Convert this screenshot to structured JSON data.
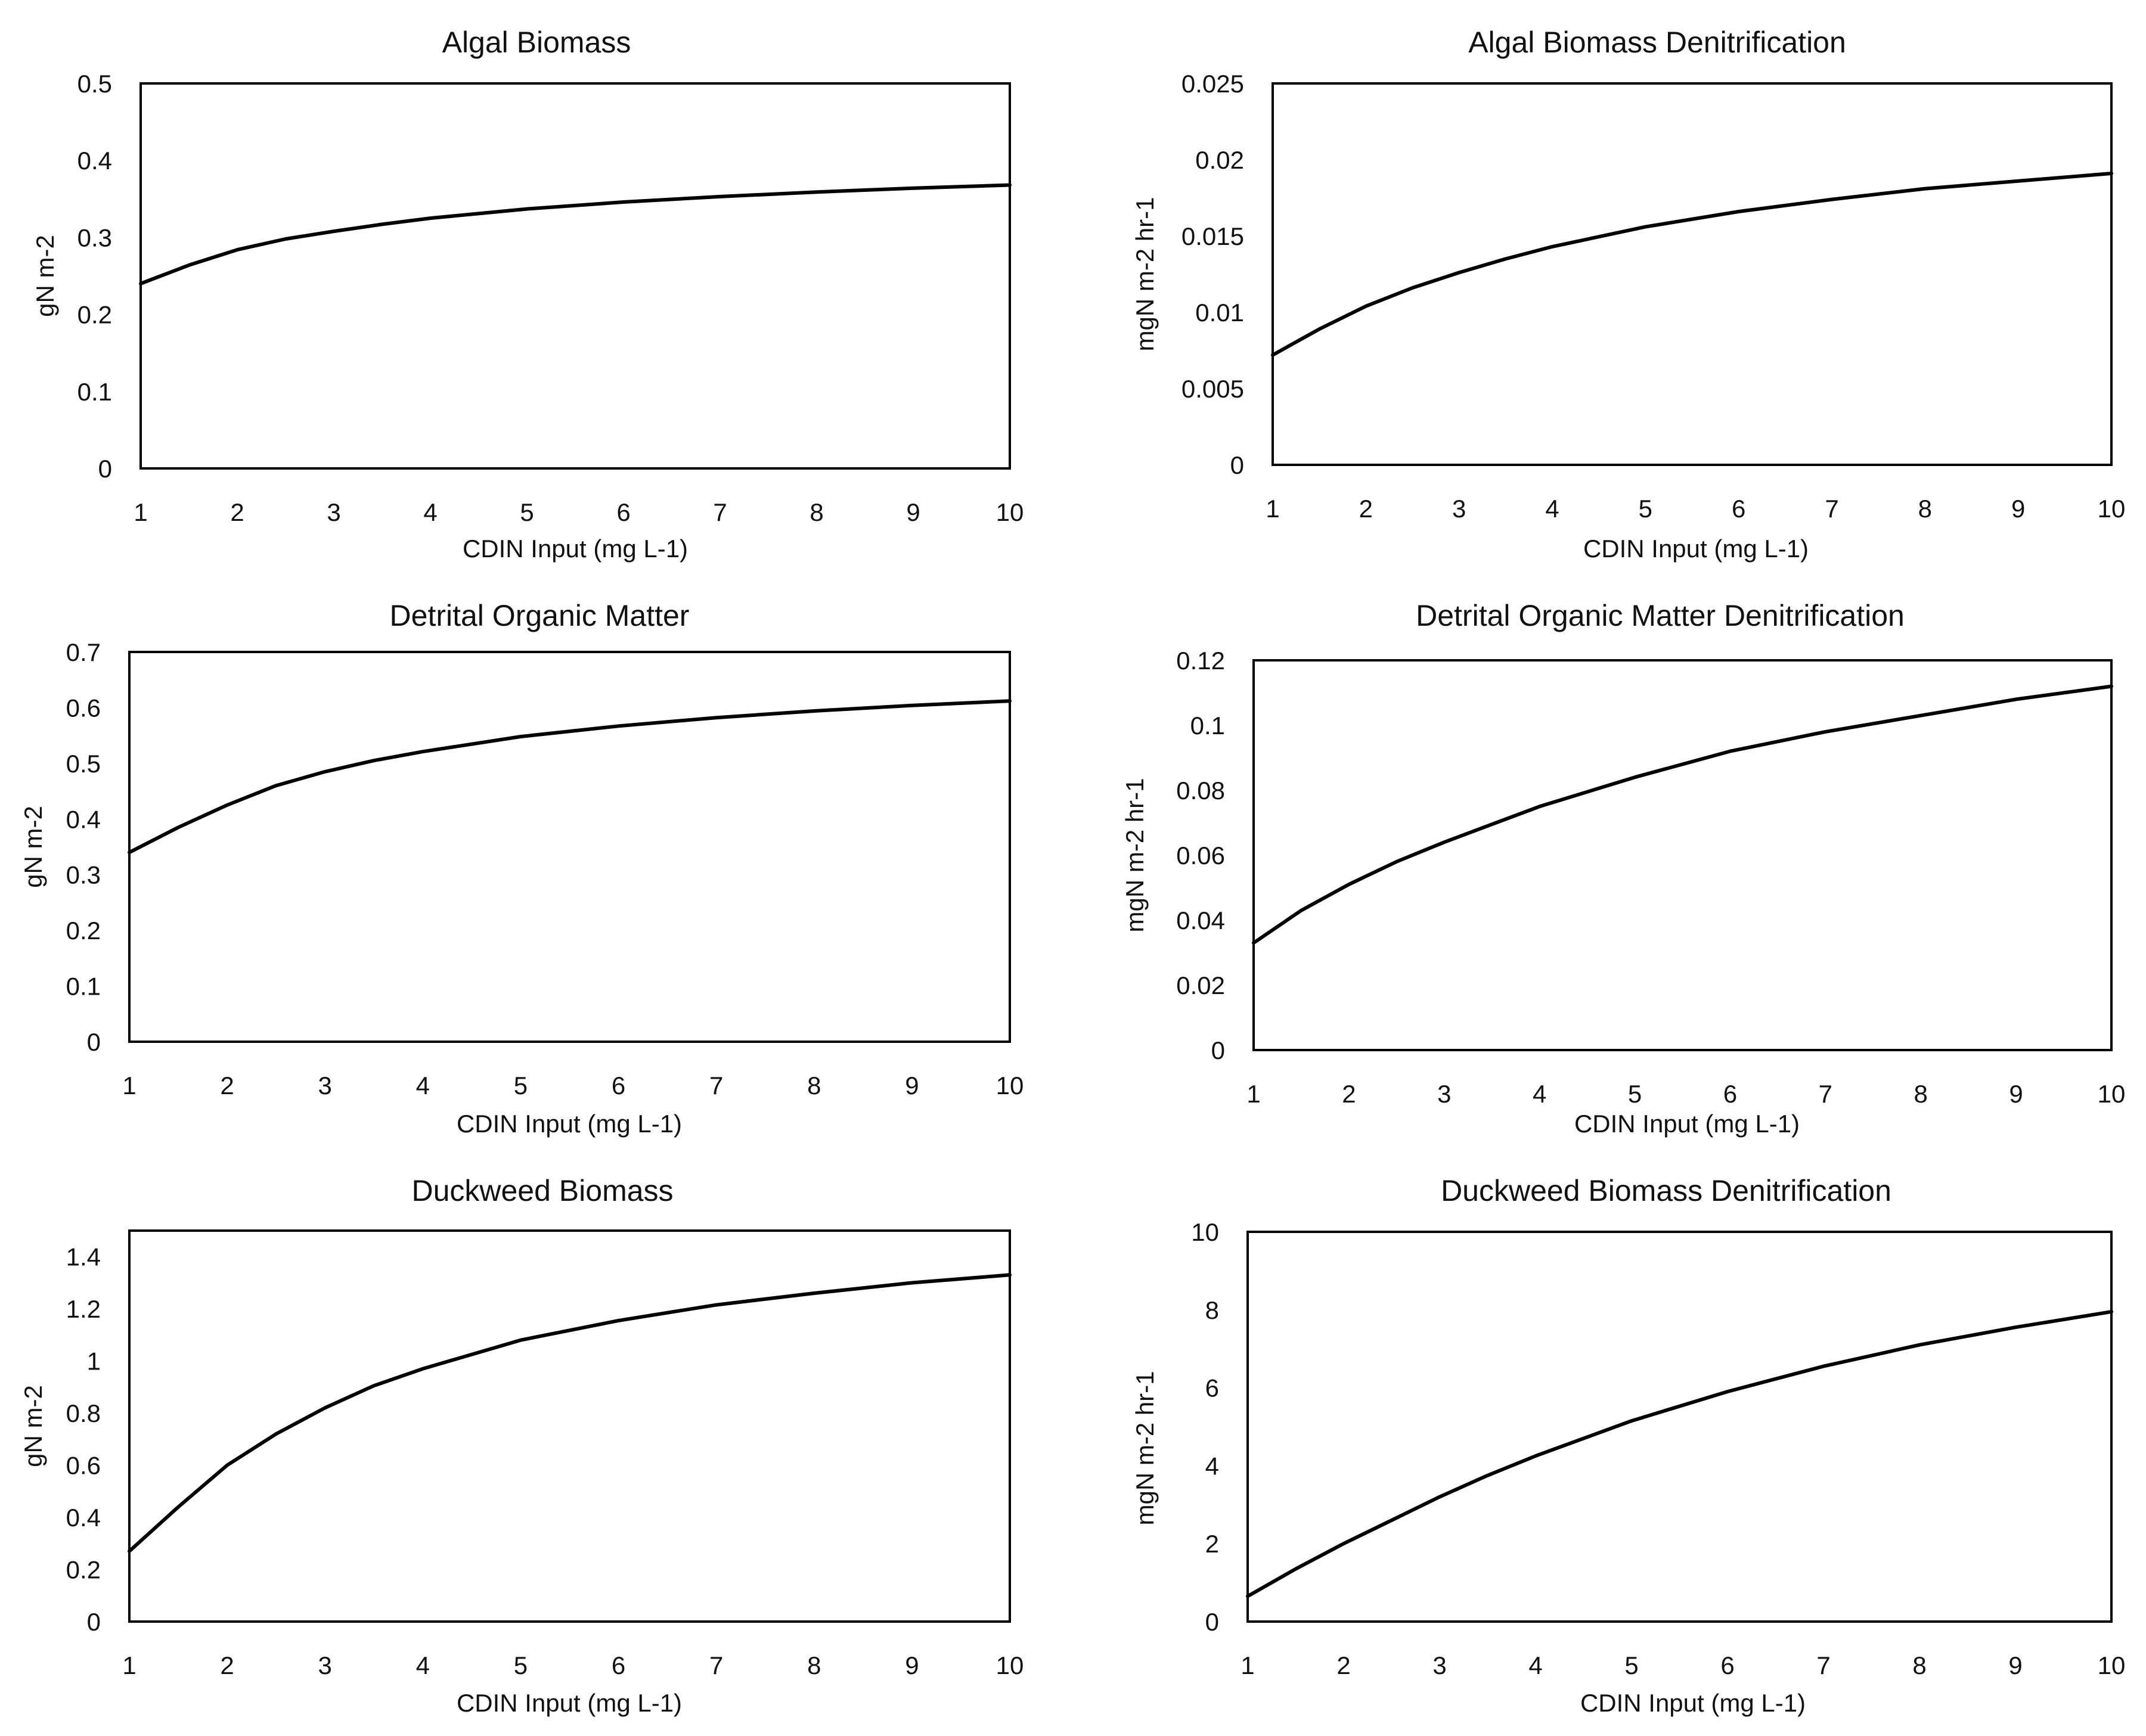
{
  "chart_data": [
    {
      "type": "line",
      "title": "Algal Biomass",
      "xlabel": "CDIN Input (mg L-1)",
      "ylabel": "gN m-2",
      "xlim": [
        1,
        10
      ],
      "ylim": [
        0,
        0.5
      ],
      "x_ticks": [
        "1",
        "2",
        "3",
        "4",
        "5",
        "6",
        "7",
        "8",
        "9",
        "10"
      ],
      "y_ticks": [
        "0",
        "0.1",
        "0.2",
        "0.3",
        "0.4",
        "0.5"
      ],
      "x": [
        1,
        1.5,
        2,
        2.5,
        3,
        3.5,
        4,
        5,
        6,
        7,
        8,
        9,
        10
      ],
      "series": [
        {
          "name": "Algal Biomass",
          "values": [
            0.24,
            0.264,
            0.284,
            0.298,
            0.308,
            0.317,
            0.325,
            0.337,
            0.346,
            0.353,
            0.359,
            0.364,
            0.368
          ]
        }
      ]
    },
    {
      "type": "line",
      "title": "Algal Biomass Denitrification",
      "xlabel": "CDIN Input (mg L-1)",
      "ylabel": "mgN m-2 hr-1",
      "xlim": [
        1,
        10
      ],
      "ylim": [
        0,
        0.025
      ],
      "x_ticks": [
        "1",
        "2",
        "3",
        "4",
        "5",
        "6",
        "7",
        "8",
        "9",
        "10"
      ],
      "y_ticks": [
        "0",
        "0.005",
        "0.01",
        "0.015",
        "0.02",
        "0.025"
      ],
      "x": [
        1,
        1.5,
        2,
        2.5,
        3,
        3.5,
        4,
        5,
        6,
        7,
        8,
        9,
        10
      ],
      "series": [
        {
          "name": "Algal Biomass Denitrification",
          "values": [
            0.0072,
            0.0089,
            0.0104,
            0.0116,
            0.0126,
            0.0135,
            0.0143,
            0.0156,
            0.0166,
            0.0174,
            0.0181,
            0.0186,
            0.0191
          ]
        }
      ]
    },
    {
      "type": "line",
      "title": "Detrital Organic Matter",
      "xlabel": "CDIN Input (mg L-1)",
      "ylabel": "gN m-2",
      "xlim": [
        1,
        10
      ],
      "ylim": [
        0,
        0.7
      ],
      "x_ticks": [
        "1",
        "2",
        "3",
        "4",
        "5",
        "6",
        "7",
        "8",
        "9",
        "10"
      ],
      "y_ticks": [
        "0",
        "0.1",
        "0.2",
        "0.3",
        "0.4",
        "0.5",
        "0.6",
        "0.7"
      ],
      "x": [
        1,
        1.5,
        2,
        2.5,
        3,
        3.5,
        4,
        5,
        6,
        7,
        8,
        9,
        10
      ],
      "series": [
        {
          "name": "Detrital Organic Matter",
          "values": [
            0.34,
            0.385,
            0.425,
            0.46,
            0.485,
            0.505,
            0.521,
            0.548,
            0.567,
            0.582,
            0.594,
            0.604,
            0.612
          ]
        }
      ]
    },
    {
      "type": "line",
      "title": "Detrital Organic Matter Denitrification",
      "xlabel": "CDIN Input (mg L-1)",
      "ylabel": "mgN m-2 hr-1",
      "xlim": [
        1,
        10
      ],
      "ylim": [
        0,
        0.12
      ],
      "x_ticks": [
        "1",
        "2",
        "3",
        "4",
        "5",
        "6",
        "7",
        "8",
        "9",
        "10"
      ],
      "y_ticks": [
        "0",
        "0.02",
        "0.04",
        "0.06",
        "0.08",
        "0.1",
        "0.12"
      ],
      "x": [
        1,
        1.5,
        2,
        2.5,
        3,
        3.5,
        4,
        5,
        6,
        7,
        8,
        9,
        10
      ],
      "series": [
        {
          "name": "Detrital Organic Matter Denitrification",
          "values": [
            0.033,
            0.043,
            0.051,
            0.058,
            0.064,
            0.0695,
            0.075,
            0.084,
            0.092,
            0.098,
            0.103,
            0.108,
            0.112
          ]
        }
      ]
    },
    {
      "type": "line",
      "title": "Duckweed Biomass",
      "xlabel": "CDIN Input (mg L-1)",
      "ylabel": "gN m-2",
      "xlim": [
        1,
        10
      ],
      "ylim": [
        0,
        1.5
      ],
      "x_ticks": [
        "1",
        "2",
        "3",
        "4",
        "5",
        "6",
        "7",
        "8",
        "9",
        "10"
      ],
      "y_ticks": [
        "0",
        "0.2",
        "0.4",
        "0.6",
        "0.8",
        "1",
        "1.2",
        "1.4"
      ],
      "x": [
        1,
        1.5,
        2,
        2.5,
        3,
        3.5,
        4,
        5,
        6,
        7,
        8,
        9,
        10
      ],
      "series": [
        {
          "name": "Duckweed Biomass",
          "values": [
            0.27,
            0.44,
            0.6,
            0.72,
            0.82,
            0.905,
            0.97,
            1.08,
            1.155,
            1.215,
            1.26,
            1.3,
            1.33
          ]
        }
      ]
    },
    {
      "type": "line",
      "title": "Duckweed Biomass Denitrification",
      "xlabel": "CDIN Input (mg L-1)",
      "ylabel": "mgN m-2 hr-1",
      "xlim": [
        1,
        10
      ],
      "ylim": [
        0,
        10
      ],
      "x_ticks": [
        "1",
        "2",
        "3",
        "4",
        "5",
        "6",
        "7",
        "8",
        "9",
        "10"
      ],
      "y_ticks": [
        "0",
        "2",
        "4",
        "6",
        "8",
        "10"
      ],
      "x": [
        1,
        1.5,
        2,
        2.5,
        3,
        3.5,
        4,
        5,
        6,
        7,
        8,
        9,
        10
      ],
      "series": [
        {
          "name": "Duckweed Biomass Denitrification",
          "values": [
            0.65,
            1.35,
            2.0,
            2.6,
            3.2,
            3.75,
            4.25,
            5.15,
            5.9,
            6.55,
            7.1,
            7.55,
            7.95
          ]
        }
      ]
    }
  ]
}
